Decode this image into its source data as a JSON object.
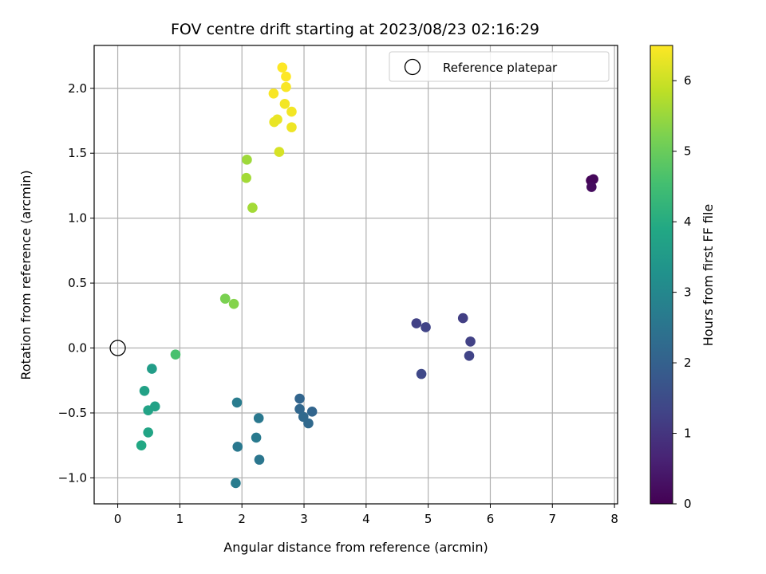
{
  "chart_data": {
    "type": "scatter",
    "title": "FOV centre drift starting at 2023/08/23 02:16:29",
    "xlabel": "Angular distance from reference (arcmin)",
    "ylabel": "Rotation from reference (arcmin)",
    "xlim": [
      -0.38,
      8.05
    ],
    "ylim": [
      -1.2,
      2.33
    ],
    "x_ticks": [
      0,
      1,
      2,
      3,
      4,
      5,
      6,
      7,
      8
    ],
    "y_ticks": [
      -1.0,
      -0.5,
      0.0,
      0.5,
      1.0,
      1.5,
      2.0
    ],
    "x_tick_labels": [
      "0",
      "1",
      "2",
      "3",
      "4",
      "5",
      "6",
      "7",
      "8"
    ],
    "y_tick_labels": [
      "−1.0",
      "−0.5",
      "0.0",
      "0.5",
      "1.0",
      "1.5",
      "2.0"
    ],
    "grid": true,
    "legend": {
      "placement": "top-right",
      "entries": [
        {
          "label": "Reference platepar",
          "marker": "open-circle"
        }
      ]
    },
    "reference_point": {
      "x": 0,
      "y": 0
    },
    "colorbar": {
      "label": "Hours from first FF file",
      "range": [
        0,
        6.5
      ],
      "ticks": [
        0,
        1,
        2,
        3,
        4,
        5,
        6
      ],
      "tick_labels": [
        "0",
        "1",
        "2",
        "3",
        "4",
        "5",
        "6"
      ],
      "colormap": "viridis"
    },
    "series": [
      {
        "points": [
          {
            "x": 7.62,
            "y": 1.29,
            "c": 0.05
          },
          {
            "x": 7.66,
            "y": 1.3,
            "c": 0.12
          },
          {
            "x": 7.63,
            "y": 1.24,
            "c": 0.2
          },
          {
            "x": 4.81,
            "y": 0.19,
            "c": 1.25
          },
          {
            "x": 4.96,
            "y": 0.16,
            "c": 1.3
          },
          {
            "x": 5.56,
            "y": 0.23,
            "c": 1.2
          },
          {
            "x": 5.68,
            "y": 0.05,
            "c": 1.25
          },
          {
            "x": 5.66,
            "y": -0.06,
            "c": 1.3
          },
          {
            "x": 4.89,
            "y": -0.2,
            "c": 1.4
          },
          {
            "x": 2.93,
            "y": -0.39,
            "c": 2.1
          },
          {
            "x": 2.93,
            "y": -0.47,
            "c": 2.15
          },
          {
            "x": 2.99,
            "y": -0.53,
            "c": 2.2
          },
          {
            "x": 3.13,
            "y": -0.49,
            "c": 2.1
          },
          {
            "x": 3.07,
            "y": -0.58,
            "c": 2.2
          },
          {
            "x": 1.92,
            "y": -0.42,
            "c": 2.7
          },
          {
            "x": 2.27,
            "y": -0.54,
            "c": 2.6
          },
          {
            "x": 2.23,
            "y": -0.69,
            "c": 2.65
          },
          {
            "x": 1.93,
            "y": -0.76,
            "c": 2.6
          },
          {
            "x": 2.28,
            "y": -0.86,
            "c": 2.55
          },
          {
            "x": 1.9,
            "y": -1.04,
            "c": 2.7
          },
          {
            "x": 0.55,
            "y": -0.16,
            "c": 3.6
          },
          {
            "x": 0.43,
            "y": -0.33,
            "c": 3.7
          },
          {
            "x": 0.49,
            "y": -0.48,
            "c": 3.75
          },
          {
            "x": 0.6,
            "y": -0.45,
            "c": 3.7
          },
          {
            "x": 0.49,
            "y": -0.65,
            "c": 3.8
          },
          {
            "x": 0.38,
            "y": -0.75,
            "c": 3.9
          },
          {
            "x": 0.93,
            "y": -0.05,
            "c": 4.6
          },
          {
            "x": 1.73,
            "y": 0.38,
            "c": 5.2
          },
          {
            "x": 1.87,
            "y": 0.34,
            "c": 5.3
          },
          {
            "x": 2.08,
            "y": 1.45,
            "c": 5.55
          },
          {
            "x": 2.07,
            "y": 1.31,
            "c": 5.6
          },
          {
            "x": 2.17,
            "y": 1.08,
            "c": 5.6
          },
          {
            "x": 2.6,
            "y": 1.51,
            "c": 6.1
          },
          {
            "x": 2.52,
            "y": 1.74,
            "c": 6.3
          },
          {
            "x": 2.57,
            "y": 1.76,
            "c": 6.3
          },
          {
            "x": 2.8,
            "y": 1.7,
            "c": 6.35
          },
          {
            "x": 2.8,
            "y": 1.82,
            "c": 6.4
          },
          {
            "x": 2.69,
            "y": 1.88,
            "c": 6.4
          },
          {
            "x": 2.51,
            "y": 1.96,
            "c": 6.45
          },
          {
            "x": 2.71,
            "y": 2.01,
            "c": 6.45
          },
          {
            "x": 2.71,
            "y": 2.09,
            "c": 6.5
          },
          {
            "x": 2.65,
            "y": 2.16,
            "c": 6.5
          }
        ]
      }
    ]
  }
}
